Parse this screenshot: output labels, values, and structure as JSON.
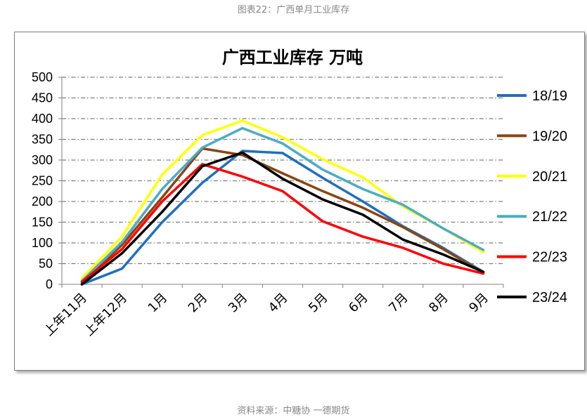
{
  "page": {
    "caption_top": "图表22：广西单月工业库存",
    "caption_bottom": "资料来源：中糖协 一德期货"
  },
  "chart_data": {
    "type": "line",
    "title": "广西工业库存  万吨",
    "xlabel": "",
    "ylabel": "",
    "categories": [
      "上年11月",
      "上年12月",
      "1月",
      "2月",
      "3月",
      "4月",
      "5月",
      "6月",
      "7月",
      "8月",
      "9月"
    ],
    "ylim": [
      0,
      500
    ],
    "yticks": [
      0,
      50,
      100,
      150,
      200,
      250,
      300,
      350,
      400,
      450,
      500
    ],
    "grid": true,
    "legend_position": "right",
    "series": [
      {
        "name": "18/19",
        "color": "#1F6FC0",
        "values": [
          0,
          38,
          150,
          245,
          322,
          317,
          257,
          200,
          140,
          88,
          30
        ]
      },
      {
        "name": "19/20",
        "color": "#8B4513",
        "values": [
          5,
          95,
          210,
          328,
          312,
          268,
          225,
          185,
          138,
          85,
          28
        ]
      },
      {
        "name": "20/21",
        "color": "#FFFF00",
        "values": [
          14,
          115,
          265,
          360,
          395,
          355,
          302,
          258,
          188,
          135,
          78
        ]
      },
      {
        "name": "21/22",
        "color": "#4BACC6",
        "values": [
          8,
          102,
          230,
          330,
          377,
          340,
          277,
          230,
          192,
          135,
          83
        ]
      },
      {
        "name": "22/23",
        "color": "#FF0000",
        "values": [
          6,
          85,
          200,
          290,
          260,
          225,
          152,
          115,
          88,
          50,
          26
        ]
      },
      {
        "name": "23/24",
        "color": "#000000",
        "values": [
          0,
          75,
          175,
          285,
          318,
          255,
          205,
          168,
          108,
          72,
          30
        ]
      }
    ]
  }
}
